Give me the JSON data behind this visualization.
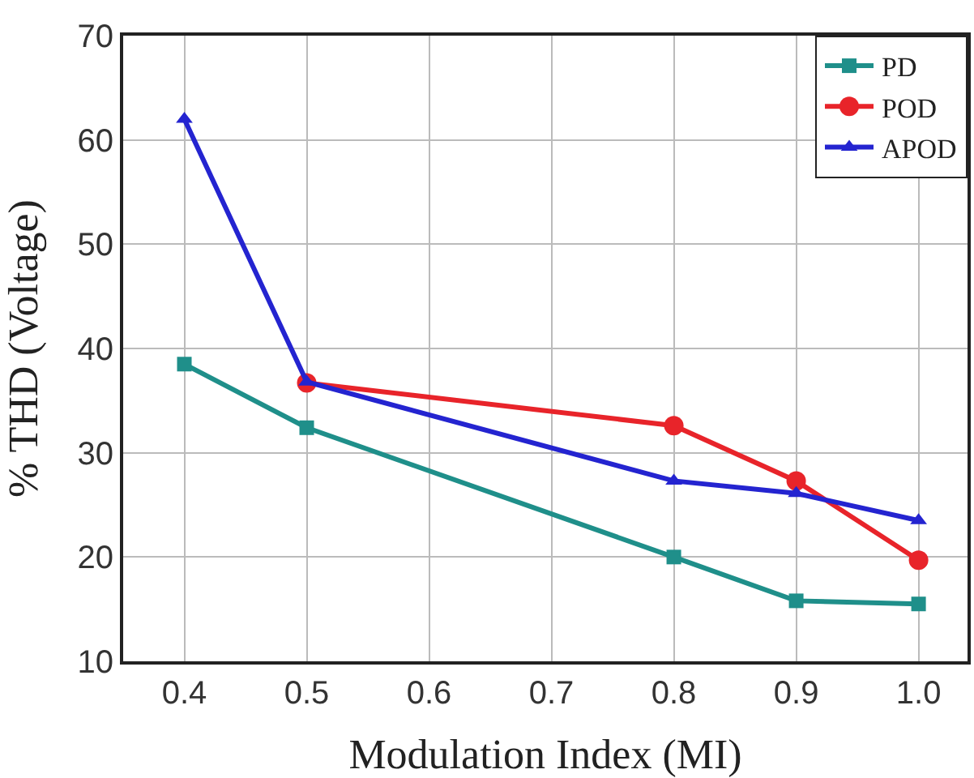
{
  "chart_data": {
    "type": "line",
    "xlabel": "Modulation Index (MI)",
    "ylabel": "% THD (Voltage)",
    "x": [
      0.4,
      0.5,
      0.8,
      0.9,
      1.0
    ],
    "series": [
      {
        "name": "PD",
        "color": "#1f8f8a",
        "marker": "square",
        "values": [
          38.5,
          32.4,
          20.0,
          15.8,
          15.5
        ]
      },
      {
        "name": "POD",
        "color": "#e8242a",
        "marker": "circle",
        "values": [
          null,
          36.7,
          32.6,
          27.3,
          19.7
        ]
      },
      {
        "name": "APOD",
        "color": "#2424d0",
        "marker": "triangle",
        "values": [
          62.0,
          36.8,
          27.3,
          26.1,
          23.5
        ]
      }
    ],
    "xlim": [
      0.35,
      1.04
    ],
    "xticks": [
      {
        "value": 0.4,
        "label": "0.4"
      },
      {
        "value": 0.5,
        "label": "0.5"
      },
      {
        "value": 0.6,
        "label": "0.6"
      },
      {
        "value": 0.7,
        "label": "0.7"
      },
      {
        "value": 0.8,
        "label": "0.8"
      },
      {
        "value": 0.9,
        "label": "0.9"
      },
      {
        "value": 1.0,
        "label": "1.0"
      }
    ],
    "ylim": [
      10,
      70
    ],
    "yticks": [
      10,
      20,
      30,
      40,
      50,
      60,
      70
    ],
    "grid": true,
    "legend": "top right",
    "line_style": "solid"
  }
}
